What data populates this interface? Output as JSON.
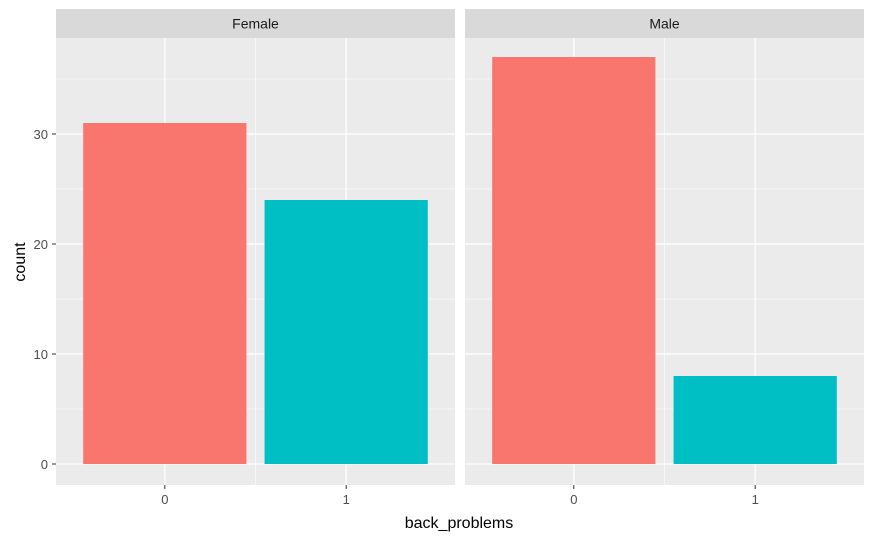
{
  "chart_data": {
    "type": "bar",
    "facet_var": "sex",
    "facets": [
      "Female",
      "Male"
    ],
    "categories": [
      "0",
      "1"
    ],
    "series": [
      {
        "facet": "Female",
        "values": [
          31,
          24
        ]
      },
      {
        "facet": "Male",
        "values": [
          37,
          8
        ]
      }
    ],
    "xlabel": "back_problems",
    "ylabel": "count",
    "ylim": [
      0,
      38.85
    ],
    "yticks": [
      0,
      10,
      20,
      30
    ],
    "grid": true,
    "legend": "none",
    "colors": {
      "0": "#F8766D",
      "1": "#00BFC4"
    },
    "panel_background": "#EBEBEB",
    "strip_background": "#D9D9D9",
    "grid_color": "#FFFFFF"
  }
}
